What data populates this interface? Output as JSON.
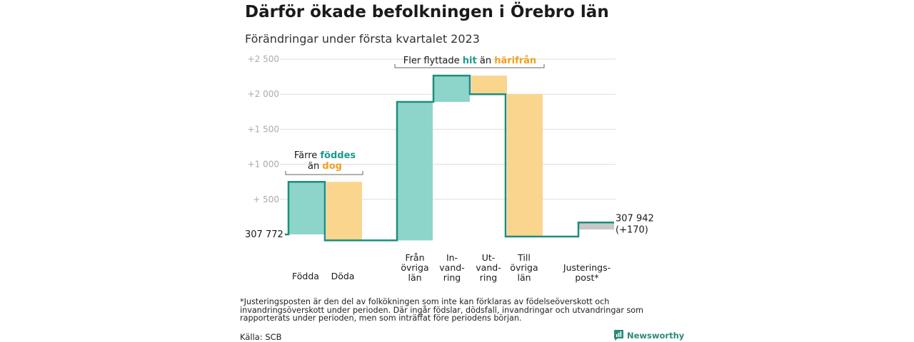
{
  "title": "Därför ökade befolkningen i Örebro län",
  "subtitle": "Förändringar under första kvartalet 2023",
  "footnote": "*Justeringsposten är den del av folkökningen som inte kan förklaras av födelseöverskott och invandringsöverskott under perioden. Där ingår födslar, dödsfall, invandringar och utvandringar som rapporterats under perioden, men som inträffat före periodens början.",
  "source": "Källa: SCB",
  "brand": "Newsworthy",
  "colors": {
    "increase": "#8dd5cb",
    "decrease": "#fad58e",
    "adjustment": "#c8c8c8",
    "line": "#1d8d7d",
    "grid": "#dddddd",
    "teal_text": "#1d9a89",
    "orange_text": "#f0a020"
  },
  "chart_data": {
    "type": "waterfall",
    "yticks": [
      "+2 500",
      "+2 000",
      "+1 500",
      "+1 000",
      "+ 500"
    ],
    "ylim": [
      -100,
      2600
    ],
    "start_label": "307 772",
    "end_label": [
      "307 942",
      "(+170)"
    ],
    "steps": [
      {
        "label": "Födda",
        "change": 750,
        "kind": "increase"
      },
      {
        "label": "Döda",
        "change": -835,
        "kind": "decrease"
      },
      {
        "label": "Från övriga län",
        "change": 1975,
        "kind": "increase"
      },
      {
        "label": "In- vandring",
        "change": 375,
        "kind": "increase"
      },
      {
        "label": "Ut- vandring",
        "change": -265,
        "kind": "decrease"
      },
      {
        "label": "Till övriga län",
        "change": -2030,
        "kind": "decrease"
      },
      {
        "label": "Justerings- post*",
        "change": 200,
        "kind": "adjustment"
      }
    ],
    "annotations": [
      {
        "parts": [
          [
            "Färre ",
            "normal"
          ],
          [
            "föddes",
            "teal"
          ],
          [
            "än ",
            "normal"
          ],
          [
            "dog",
            "orange"
          ]
        ]
      },
      {
        "parts": [
          [
            "Fler flyttade ",
            "normal"
          ],
          [
            "hit",
            "teal"
          ],
          [
            " än ",
            "normal"
          ],
          [
            "härifrån",
            "orange"
          ]
        ]
      }
    ]
  }
}
